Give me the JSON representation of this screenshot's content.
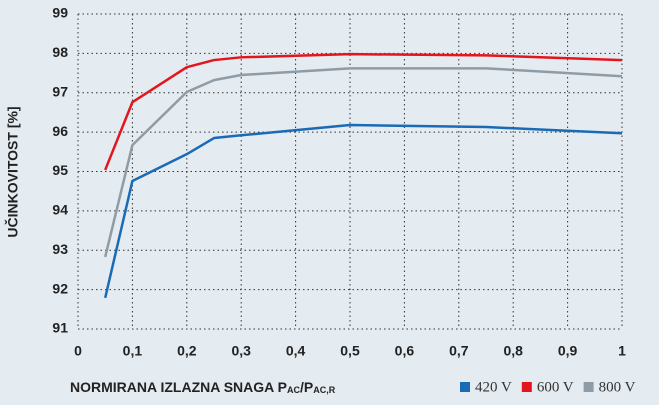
{
  "chart_data": {
    "type": "line",
    "ylabel": "UČINKOVITOST [%]",
    "xlabel_parts": [
      "NORMIRANA IZLAZNA SNAGA P",
      "AC",
      "/P",
      "AC,R"
    ],
    "xlim": [
      0,
      1
    ],
    "ylim": [
      91,
      99
    ],
    "xticks": [
      0,
      {
        "value": 0.1,
        "label": "0,1"
      },
      {
        "value": 0.2,
        "label": "0,2"
      },
      {
        "value": 0.3,
        "label": "0,3"
      },
      {
        "value": 0.4,
        "label": "0,4"
      },
      {
        "value": 0.5,
        "label": "0,5"
      },
      {
        "value": 0.6,
        "label": "0,6"
      },
      {
        "value": 0.7,
        "label": "0,7"
      },
      {
        "value": 0.8,
        "label": "0,8"
      },
      {
        "value": 0.9,
        "label": "0,9"
      },
      1
    ],
    "yticks": [
      91,
      92,
      93,
      94,
      95,
      96,
      97,
      98,
      99
    ],
    "grid": true,
    "x": [
      0.05,
      0.1,
      0.2,
      0.25,
      0.3,
      0.5,
      0.75,
      1
    ],
    "series": [
      {
        "name": "420 V",
        "color": "#1a6bb5",
        "values": [
          91.79,
          94.76,
          95.44,
          95.85,
          95.92,
          96.18,
          96.13,
          95.97
        ]
      },
      {
        "name": "600 V",
        "color": "#e3161d",
        "values": [
          95.04,
          96.76,
          97.65,
          97.83,
          97.9,
          97.98,
          97.95,
          97.83
        ]
      },
      {
        "name": "800 V",
        "color": "#8f9ca6",
        "values": [
          92.83,
          95.67,
          97.02,
          97.32,
          97.45,
          97.62,
          97.62,
          97.42
        ]
      }
    ]
  }
}
